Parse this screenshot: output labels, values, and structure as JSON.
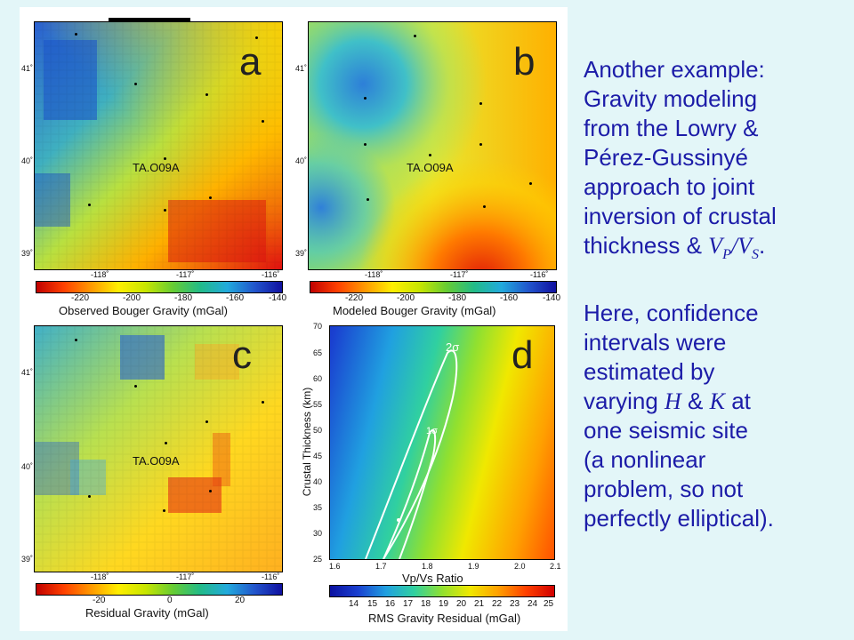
{
  "slide": {
    "paragraph1": {
      "line1": "Another example:",
      "line2": "Gravity modeling",
      "line3": "from the Lowry &",
      "line4": "Pérez-Gussinyé",
      "line5": "approach to joint",
      "line6": "inversion of crustal",
      "line7_pre": "thickness & ",
      "vp": "V",
      "vp_sub": "P",
      "slash": "/",
      "vs": "V",
      "vs_sub": "S",
      "line7_post": "."
    },
    "paragraph2": {
      "line1": "Here, confidence",
      "line2": "intervals were",
      "line3": "estimated by",
      "line4_pre": "varying ",
      "H": "H",
      "amp": " & ",
      "K": "K",
      "line4_post": " at",
      "line5": "one seismic site",
      "line6": "(a nonlinear",
      "line7": "problem, so not",
      "line8": "perfectly elliptical)."
    }
  },
  "panels": {
    "a": {
      "letter": "a",
      "station": "TA.O09A",
      "lat_ticks": [
        "41˚",
        "40˚",
        "39˚"
      ],
      "lon_ticks": [
        "-118˚",
        "-117˚",
        "-116˚"
      ],
      "cbar_ticks": [
        "-220",
        "-200",
        "-180",
        "-160",
        "-140"
      ],
      "cbar_title": "Observed Bouger Gravity (mGal)"
    },
    "b": {
      "letter": "b",
      "station": "TA.O09A",
      "lat_ticks": [
        "41˚",
        "40˚",
        "39˚"
      ],
      "lon_ticks": [
        "-118˚",
        "-117˚",
        "-116˚"
      ],
      "cbar_ticks": [
        "-220",
        "-200",
        "-180",
        "-160",
        "-140"
      ],
      "cbar_title": "Modeled Bouger Gravity (mGal)"
    },
    "c": {
      "letter": "c",
      "station": "TA.O09A",
      "lat_ticks": [
        "41˚",
        "40˚",
        "39˚"
      ],
      "lon_ticks": [
        "-118˚",
        "-117˚",
        "-116˚"
      ],
      "cbar_ticks": [
        "-20",
        "0",
        "20"
      ],
      "cbar_title": "Residual Gravity (mGal)"
    },
    "d": {
      "letter": "d",
      "ylabel": "Crustal Thickness (km)",
      "xlabel": "Vp/Vs Ratio",
      "y_ticks": [
        "70",
        "65",
        "60",
        "55",
        "50",
        "45",
        "40",
        "35",
        "30",
        "25"
      ],
      "x_ticks": [
        "1.6",
        "1.7",
        "1.8",
        "1.9",
        "2.0",
        "2.1"
      ],
      "label_2s": "2σ",
      "label_1s": "1σ",
      "cbar_ticks": [
        "14",
        "15",
        "16",
        "17",
        "18",
        "19",
        "20",
        "21",
        "22",
        "23",
        "24",
        "25"
      ],
      "cbar_title": "RMS Gravity Residual (mGal)"
    }
  },
  "colors": {
    "text": "#1c1ca8",
    "background": "#e3f6f8"
  }
}
